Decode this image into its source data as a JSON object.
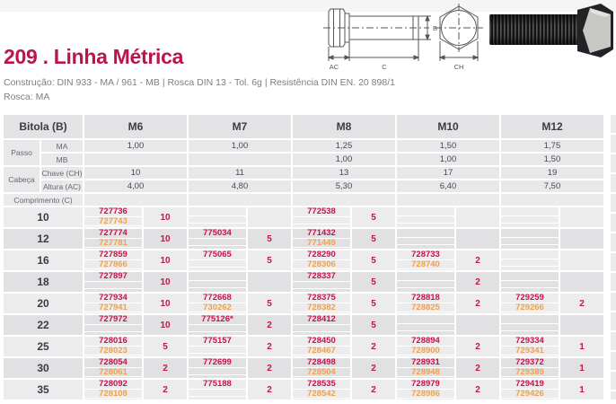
{
  "page": {
    "title": "209 . Linha Métrica",
    "construction": "Construção: DIN 933 - MA / 961 - MB | Rosca DIN 13 - Tol. 6g | Resistência DIN EN. 20 898/1",
    "rosca": "Rosca: MA"
  },
  "diagram": {
    "ac": "AC",
    "c": "C",
    "b": "B",
    "ch": "CH"
  },
  "colors": {
    "accent_crimson": "#bb1450",
    "code_ma": "#c2154b",
    "code_mb": "#f0a14b"
  },
  "table": {
    "bitola_label": "Bitola (B)",
    "sizes": [
      "M6",
      "M7",
      "M8",
      "M10",
      "M12"
    ],
    "passo_label": "Passo",
    "cabeca_label": "Cabeça",
    "comprimento_label": "Comprimento (C)",
    "spec_rows": [
      {
        "label": "MA",
        "values": [
          "1,00",
          "1,00",
          "1,25",
          "1,50",
          "1,75"
        ]
      },
      {
        "label": "MB",
        "values": [
          "",
          "",
          "1,00",
          "1,00",
          "1,50"
        ]
      },
      {
        "label": "Chave (CH)",
        "values": [
          "10",
          "11",
          "13",
          "17",
          "19"
        ]
      },
      {
        "label": "Altura (AC)",
        "values": [
          "4,00",
          "4,80",
          "5,30",
          "6,40",
          "7,50"
        ]
      }
    ],
    "rows": [
      {
        "length": "10",
        "cells": [
          {
            "ma": "727736",
            "mb": "727743",
            "qty": "10"
          },
          {
            "ma": "",
            "mb": "",
            "qty": ""
          },
          {
            "ma": "772538",
            "mb": "",
            "qty": "5"
          },
          {
            "ma": "",
            "mb": "",
            "qty": ""
          },
          {
            "ma": "",
            "mb": "",
            "qty": ""
          }
        ]
      },
      {
        "length": "12",
        "cells": [
          {
            "ma": "727774",
            "mb": "727781",
            "qty": "10"
          },
          {
            "ma": "775034",
            "mb": "",
            "qty": "5"
          },
          {
            "ma": "771432",
            "mb": "771449",
            "qty": "5"
          },
          {
            "ma": "",
            "mb": "",
            "qty": ""
          },
          {
            "ma": "",
            "mb": "",
            "qty": ""
          }
        ]
      },
      {
        "length": "16",
        "cells": [
          {
            "ma": "727859",
            "mb": "727866",
            "qty": "10"
          },
          {
            "ma": "775065",
            "mb": "",
            "qty": "5"
          },
          {
            "ma": "728290",
            "mb": "728306",
            "qty": "5"
          },
          {
            "ma": "728733",
            "mb": "728740",
            "qty": "2"
          },
          {
            "ma": "",
            "mb": "",
            "qty": ""
          }
        ]
      },
      {
        "length": "18",
        "cells": [
          {
            "ma": "727897",
            "mb": "",
            "qty": "10"
          },
          {
            "ma": "",
            "mb": "",
            "qty": ""
          },
          {
            "ma": "728337",
            "mb": "",
            "qty": "5"
          },
          {
            "ma": "",
            "mb": "",
            "qty": "2"
          },
          {
            "ma": "",
            "mb": "",
            "qty": ""
          }
        ]
      },
      {
        "length": "20",
        "cells": [
          {
            "ma": "727934",
            "mb": "727941",
            "qty": "10"
          },
          {
            "ma": "772668",
            "mb": "730262",
            "qty": "5"
          },
          {
            "ma": "728375",
            "mb": "728382",
            "qty": "5"
          },
          {
            "ma": "728818",
            "mb": "728825",
            "qty": "2"
          },
          {
            "ma": "729259",
            "mb": "729266",
            "qty": "2"
          }
        ]
      },
      {
        "length": "22",
        "cells": [
          {
            "ma": "727972",
            "mb": "",
            "qty": "10"
          },
          {
            "ma": "775126*",
            "mb": "",
            "qty": "2"
          },
          {
            "ma": "728412",
            "mb": "",
            "qty": "5"
          },
          {
            "ma": "",
            "mb": "",
            "qty": ""
          },
          {
            "ma": "",
            "mb": "",
            "qty": ""
          }
        ]
      },
      {
        "length": "25",
        "cells": [
          {
            "ma": "728016",
            "mb": "728023",
            "qty": "5"
          },
          {
            "ma": "775157",
            "mb": "",
            "qty": "2"
          },
          {
            "ma": "728450",
            "mb": "728467",
            "qty": "2"
          },
          {
            "ma": "728894",
            "mb": "728900",
            "qty": "2"
          },
          {
            "ma": "729334",
            "mb": "729341",
            "qty": "1"
          }
        ]
      },
      {
        "length": "30",
        "cells": [
          {
            "ma": "728054",
            "mb": "728061",
            "qty": "2"
          },
          {
            "ma": "772699",
            "mb": "",
            "qty": "2"
          },
          {
            "ma": "728498",
            "mb": "728504",
            "qty": "2"
          },
          {
            "ma": "728931",
            "mb": "728948",
            "qty": "2"
          },
          {
            "ma": "729372",
            "mb": "729389",
            "qty": "1"
          }
        ]
      },
      {
        "length": "35",
        "cells": [
          {
            "ma": "728092",
            "mb": "728108",
            "qty": "2"
          },
          {
            "ma": "775188",
            "mb": "",
            "qty": "2"
          },
          {
            "ma": "728535",
            "mb": "728542",
            "qty": "2"
          },
          {
            "ma": "728979",
            "mb": "728986",
            "qty": "2"
          },
          {
            "ma": "729419",
            "mb": "729426",
            "qty": "1"
          }
        ]
      }
    ]
  }
}
